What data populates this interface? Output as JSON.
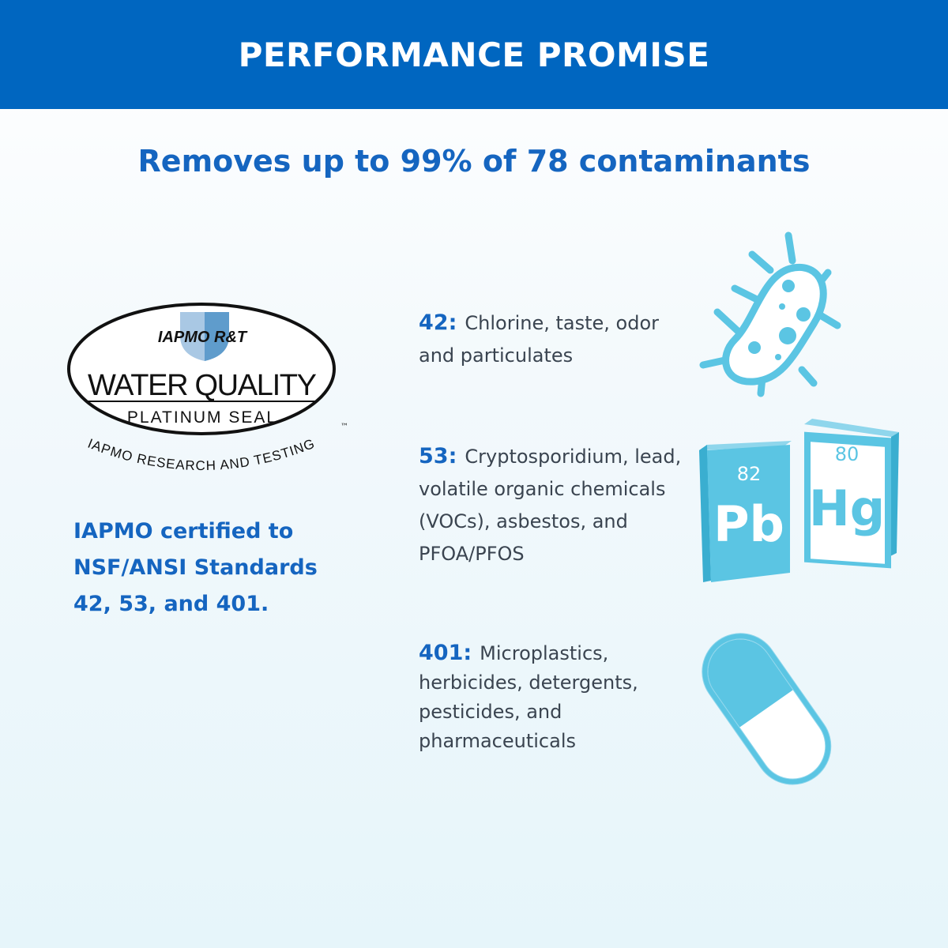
{
  "header": {
    "title": "PERFORMANCE PROMISE"
  },
  "subtitle": "Removes up to 99% of 78 contaminants",
  "seal": {
    "brand": "IAPMO R&T",
    "title": "WATER QUALITY",
    "subtitle": "PLATINUM SEAL",
    "arc_text": "IAPMO RESEARCH AND TESTING",
    "tm": "™"
  },
  "certification": "IAPMO certified to NSF/ANSI Standards 42, 53, and 401.",
  "items": [
    {
      "num": "42:",
      "text": "Chlorine, taste, odor and particulates",
      "icon": "bacteria-icon"
    },
    {
      "num": "53:",
      "text": "Cryptosporidium, lead, volatile organic chemicals (VOCs), asbestos, and PFOA/PFOS",
      "icon": "periodic-elements-icon"
    },
    {
      "num": "401:",
      "text": "Microplastics, herbicides, detergents, pesticides, and pharmaceuticals",
      "icon": "capsule-icon"
    }
  ],
  "elements": [
    {
      "number": "82",
      "symbol": "Pb"
    },
    {
      "number": "80",
      "symbol": "Hg"
    }
  ],
  "colors": {
    "header": "#0066c0",
    "accent": "#1565c0",
    "icon": "#5bc5e3",
    "text": "#3a4450"
  }
}
